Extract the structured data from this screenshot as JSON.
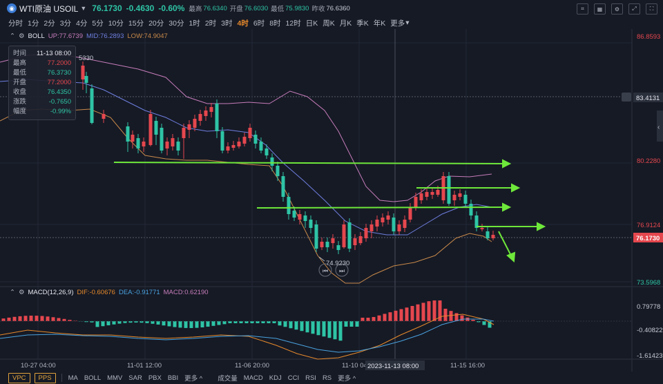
{
  "header": {
    "logo_glyph": "◉",
    "symbol": "WTI原油 USOIL",
    "price": "76.1730",
    "change": "-0.4630",
    "change_pct": "-0.60%",
    "stats": [
      {
        "label": "最高",
        "value": "76.6340"
      },
      {
        "label": "开盘",
        "value": "76.6030"
      },
      {
        "label": "最低",
        "value": "75.9830"
      },
      {
        "label": "昨收",
        "value": "76.6360"
      }
    ]
  },
  "timeframes": [
    "分时",
    "1分",
    "2分",
    "3分",
    "4分",
    "5分",
    "10分",
    "15分",
    "20分",
    "30分",
    "1时",
    "2时",
    "3时",
    "4时",
    "6时",
    "8时",
    "12时",
    "日K",
    "周K",
    "月K",
    "季K",
    "年K",
    "更多"
  ],
  "active_timeframe": "4时",
  "boll": {
    "name": "BOLL",
    "up": "UP:77.6739",
    "mid": "MID:76.2893",
    "low": "LOW:74.9047"
  },
  "tooltip": [
    {
      "k": "时间",
      "v": "11-13 08:00",
      "c": "#e6e8ee"
    },
    {
      "k": "最高",
      "v": "77.2000",
      "c": "#e5474e"
    },
    {
      "k": "最低",
      "v": "76.3730",
      "c": "#2ec4a6"
    },
    {
      "k": "开盘",
      "v": "77.2000",
      "c": "#e5474e"
    },
    {
      "k": "收盘",
      "v": "76.4350",
      "c": "#2ec4a6"
    },
    {
      "k": "涨跌",
      "v": "-0.7650",
      "c": "#2ec4a6"
    },
    {
      "k": "幅度",
      "v": "-0.99%",
      "c": "#2ec4a6"
    }
  ],
  "partial_label": "5330",
  "price_axis": [
    "86.8593",
    "83.4131",
    "80.2280",
    "76.9124",
    "76.1730",
    "73.5968"
  ],
  "low_annotation": "74.9230",
  "macd": {
    "name": "MACD(12,26,9)",
    "dif": "DIF:-0.60676",
    "dea": "DEA:-0.91771",
    "macd": "MACD:0.62190",
    "axis": [
      "0.79778",
      "-0.40822",
      "-1.61423"
    ]
  },
  "time_axis": [
    "10-27 04:00",
    "11-01 12:00",
    "11-06 20:00",
    "11-10 04:",
    "2023-11-13 08:00",
    "11-15 16:00"
  ],
  "bottom": {
    "vpc": "VPC",
    "pps": "PPS",
    "indicators": [
      "MA",
      "BOLL",
      "MMV",
      "SAR",
      "PBX",
      "BBI",
      "更多 ^",
      "成交量",
      "MACD",
      "KDJ",
      "CCI",
      "RSI",
      "RS",
      "更多 ^"
    ]
  },
  "colors": {
    "up": "#e5474e",
    "down": "#2ec4a6",
    "boll_up": "#c77dbb",
    "boll_mid": "#6f7fe0",
    "boll_low": "#c98a4a",
    "arrow": "#6ee83a"
  }
}
